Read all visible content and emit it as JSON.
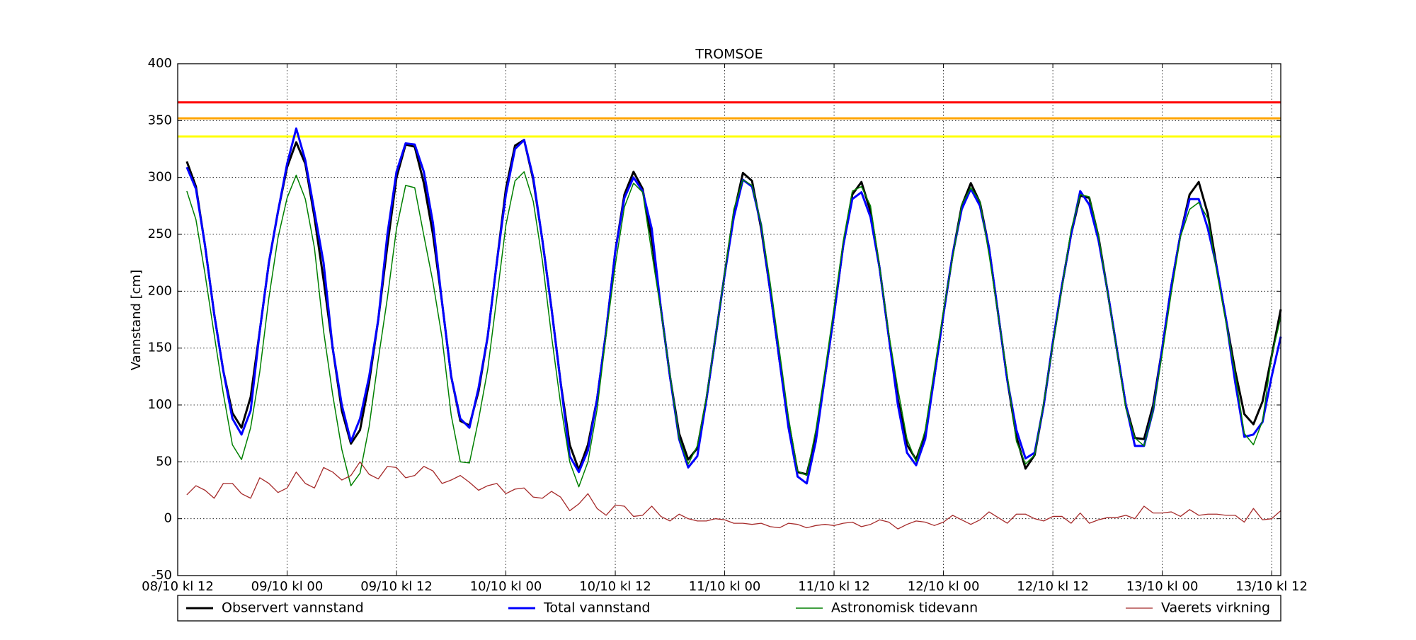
{
  "chart_data": {
    "type": "line",
    "title": "TROMSOE",
    "ylabel": "Vannstand [cm]",
    "xlim": [
      0,
      121
    ],
    "xticks": [
      {
        "value": 0,
        "label": "08/10 kl 12"
      },
      {
        "value": 12,
        "label": "09/10 kl 00"
      },
      {
        "value": 24,
        "label": "09/10 kl 12"
      },
      {
        "value": 36,
        "label": "10/10 kl 00"
      },
      {
        "value": 48,
        "label": "10/10 kl 12"
      },
      {
        "value": 60,
        "label": "11/10 kl 00"
      },
      {
        "value": 72,
        "label": "11/10 kl 12"
      },
      {
        "value": 84,
        "label": "12/10 kl 00"
      },
      {
        "value": 96,
        "label": "12/10 kl 12"
      },
      {
        "value": 108,
        "label": "13/10 kl 00"
      },
      {
        "value": 120,
        "label": "13/10 kl 12"
      }
    ],
    "ylim": [
      -50,
      400
    ],
    "yticks": [
      -50,
      0,
      50,
      100,
      150,
      200,
      250,
      300,
      350,
      400
    ],
    "grid": true,
    "hlines": [
      {
        "value": 366,
        "color": "#ff0000"
      },
      {
        "value": 352,
        "color": "#ffa500"
      },
      {
        "value": 336,
        "color": "#ffff00"
      }
    ],
    "x": [
      1,
      2,
      3,
      4,
      5,
      6,
      7,
      8,
      9,
      10,
      11,
      12,
      13,
      14,
      15,
      16,
      17,
      18,
      19,
      20,
      21,
      22,
      23,
      24,
      25,
      26,
      27,
      28,
      29,
      30,
      31,
      32,
      33,
      34,
      35,
      36,
      37,
      38,
      39,
      40,
      41,
      42,
      43,
      44,
      45,
      46,
      47,
      48,
      49,
      50,
      51,
      52,
      53,
      54,
      55,
      56,
      57,
      58,
      59,
      60,
      61,
      62,
      63,
      64,
      65,
      66,
      67,
      68,
      69,
      70,
      71,
      72,
      73,
      74,
      75,
      76,
      77,
      78,
      79,
      80,
      81,
      82,
      83,
      84,
      85,
      86,
      87,
      88,
      89,
      90,
      91,
      92,
      93,
      94,
      95,
      96,
      97,
      98,
      99,
      100,
      101,
      102,
      103,
      104,
      105,
      106,
      107,
      108,
      109,
      110,
      111,
      112,
      113,
      114,
      115,
      116,
      117,
      118,
      119,
      120,
      121
    ],
    "series": [
      {
        "name": "Observert vannstand",
        "color": "#000000",
        "width": 3,
        "values": [
          314,
          292,
          240,
          180,
          130,
          93,
          80,
          107,
          165,
          225,
          270,
          309,
          331,
          312,
          265,
          210,
          150,
          95,
          66,
          78,
          120,
          175,
          240,
          300,
          329,
          327,
          295,
          250,
          190,
          125,
          86,
          82,
          112,
          160,
          225,
          290,
          328,
          333,
          298,
          245,
          185,
          120,
          65,
          43,
          65,
          105,
          165,
          235,
          285,
          305,
          290,
          245,
          185,
          125,
          75,
          52,
          62,
          105,
          160,
          215,
          268,
          304,
          297,
          255,
          200,
          140,
          85,
          41,
          39,
          72,
          125,
          180,
          240,
          285,
          296,
          270,
          220,
          160,
          105,
          65,
          52,
          75,
          125,
          180,
          232,
          275,
          295,
          278,
          238,
          180,
          122,
          72,
          44,
          56,
          100,
          155,
          205,
          250,
          284,
          282,
          248,
          200,
          150,
          100,
          71,
          70,
          100,
          150,
          205,
          250,
          285,
          296,
          268,
          220,
          175,
          130,
          92,
          83,
          103,
          143,
          184
        ]
      },
      {
        "name": "Total vannstand",
        "color": "#0000ff",
        "width": 3,
        "values": [
          309,
          290,
          240,
          180,
          130,
          88,
          74,
          95,
          165,
          225,
          270,
          312,
          343,
          315,
          270,
          225,
          150,
          100,
          68,
          88,
          125,
          175,
          250,
          305,
          330,
          329,
          305,
          260,
          190,
          125,
          88,
          80,
          115,
          160,
          225,
          285,
          325,
          333,
          300,
          245,
          185,
          120,
          55,
          41,
          60,
          105,
          165,
          235,
          282,
          300,
          288,
          255,
          185,
          125,
          70,
          45,
          55,
          105,
          160,
          215,
          265,
          298,
          292,
          258,
          200,
          140,
          80,
          37,
          31,
          68,
          125,
          180,
          240,
          281,
          287,
          265,
          220,
          160,
          100,
          58,
          47,
          70,
          125,
          180,
          232,
          272,
          290,
          275,
          238,
          180,
          122,
          78,
          53,
          58,
          100,
          155,
          205,
          250,
          288,
          276,
          245,
          200,
          150,
          100,
          64,
          64,
          95,
          150,
          205,
          250,
          281,
          281,
          255,
          220,
          175,
          120,
          72,
          74,
          85,
          125,
          160
        ]
      },
      {
        "name": "Astronomisk tidevann",
        "color": "#008000",
        "width": 1.5,
        "values": [
          288,
          263,
          215,
          162,
          110,
          65,
          52,
          80,
          129,
          194,
          247,
          282,
          302,
          281,
          238,
          165,
          109,
          61,
          29,
          40,
          81,
          140,
          194,
          255,
          293,
          291,
          249,
          208,
          159,
          91,
          50,
          49,
          87,
          131,
          194,
          258,
          297,
          305,
          279,
          227,
          161,
          101,
          50,
          28,
          50,
          96,
          162,
          223,
          274,
          295,
          287,
          234,
          183,
          127,
          71,
          48,
          64,
          107,
          160,
          216,
          272,
          298,
          293,
          259,
          207,
          148,
          89,
          42,
          38,
          78,
          130,
          186,
          244,
          288,
          292,
          275,
          221,
          163,
          114,
          70,
          50,
          78,
          131,
          183,
          229,
          276,
          291,
          279,
          232,
          179,
          126,
          68,
          48,
          56,
          102,
          153,
          203,
          254,
          285,
          283,
          249,
          199,
          149,
          97,
          71,
          64,
          95,
          145,
          199,
          248,
          272,
          278,
          264,
          216,
          172,
          127,
          75,
          65,
          86,
          143,
          177
        ]
      },
      {
        "name": "Vaerets virkning",
        "color": "#a52a2a",
        "width": 1.3,
        "values": [
          21,
          29,
          25,
          18,
          31,
          31,
          22,
          18,
          36,
          31,
          23,
          27,
          41,
          31,
          27,
          45,
          41,
          34,
          38,
          50,
          39,
          35,
          46,
          45,
          36,
          38,
          46,
          42,
          31,
          34,
          38,
          32,
          25,
          29,
          31,
          22,
          26,
          27,
          19,
          18,
          24,
          19,
          7,
          13,
          22,
          9,
          3,
          12,
          11,
          2,
          3,
          11,
          2,
          -2,
          4,
          0,
          -2,
          -2,
          0,
          -1,
          -4,
          -4,
          -5,
          -4,
          -7,
          -8,
          -4,
          -5,
          -8,
          -6,
          -5,
          -6,
          -4,
          -3,
          -7,
          -5,
          -1,
          -3,
          -9,
          -5,
          -2,
          -3,
          -6,
          -3,
          3,
          -1,
          -5,
          -1,
          6,
          1,
          -4,
          4,
          4,
          0,
          -2,
          2,
          2,
          -4,
          5,
          -4,
          -1,
          1,
          1,
          3,
          0,
          11,
          5,
          5,
          6,
          2,
          8,
          3,
          4,
          4,
          3,
          3,
          -3,
          9,
          -1,
          0,
          7
        ]
      }
    ]
  }
}
